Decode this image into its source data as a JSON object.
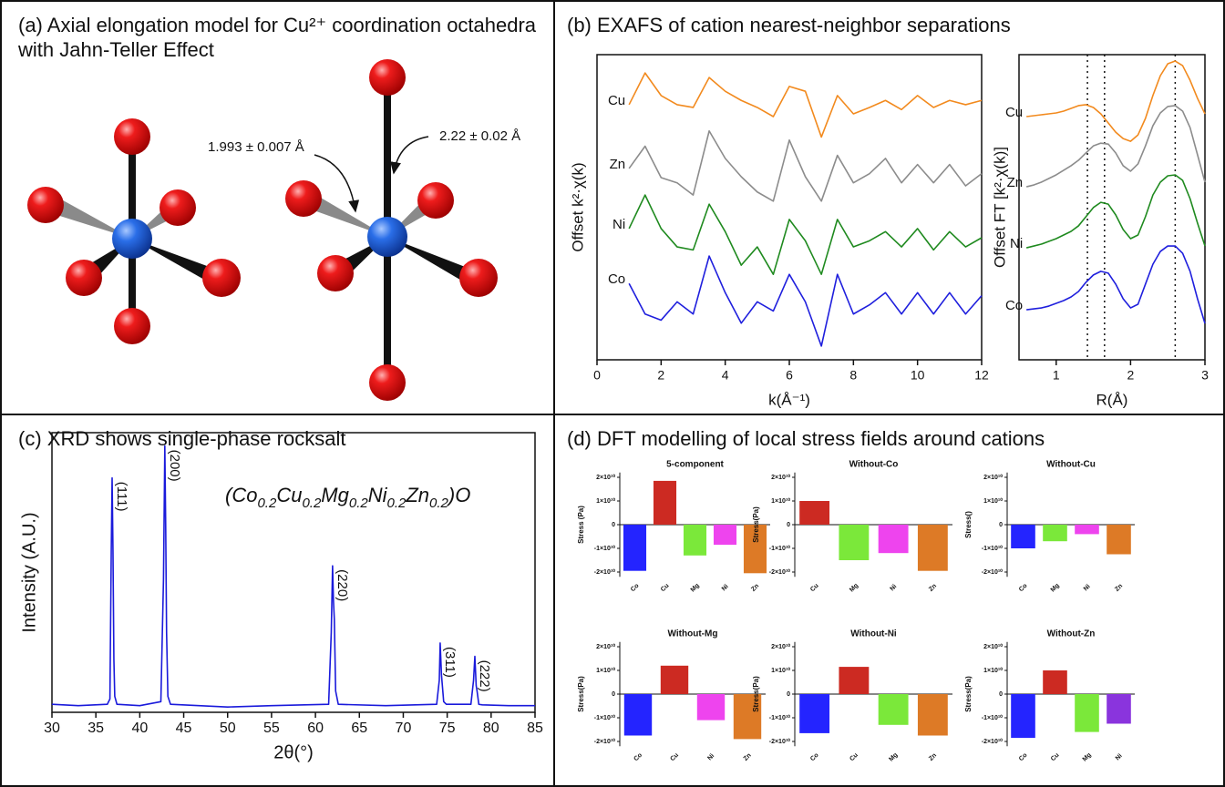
{
  "panels": [
    {
      "title": "(a) Axial elongation model for Cu²⁺ coordination octahedra with Jahn-Teller Effect"
    },
    {
      "title": "(b) EXAFS of cation nearest-neighbor separations"
    },
    {
      "title": "(c) XRD shows single-phase rocksalt"
    },
    {
      "title": "(d) DFT modelling of local stress fields around cations"
    }
  ],
  "diagram": {
    "bond_labels": [
      "1.993 ± 0.007 Å",
      "2.22 ± 0.02 Å"
    ]
  },
  "chart_data": [
    {
      "type": "line",
      "x_label": "k(Å⁻¹)",
      "y_label": "Offset k²·χ(k)",
      "x": [
        1,
        1.5,
        2,
        2.5,
        3,
        3.5,
        4,
        4.5,
        5,
        5.5,
        6,
        6.5,
        7,
        7.5,
        8,
        8.5,
        9,
        9.5,
        10,
        10.5,
        11,
        11.5,
        12
      ],
      "xlim": [
        0,
        12
      ],
      "xticks": [
        0,
        2,
        4,
        6,
        8,
        10,
        12
      ],
      "ylim": [
        0,
        10
      ],
      "series": [
        {
          "name": "Cu",
          "color": "#f28a1e",
          "values": [
            8.36,
            9.4,
            8.66,
            8.36,
            8.27,
            9.25,
            8.8,
            8.5,
            8.27,
            7.97,
            8.96,
            8.8,
            7.3,
            8.66,
            8.06,
            8.27,
            8.5,
            8.2,
            8.66,
            8.27,
            8.5,
            8.36,
            8.5
          ]
        },
        {
          "name": "Zn",
          "color": "#8c8c8c",
          "values": [
            6.27,
            7.0,
            5.97,
            5.8,
            5.4,
            7.5,
            6.6,
            6.0,
            5.5,
            5.2,
            7.2,
            6.0,
            5.2,
            6.7,
            5.8,
            6.1,
            6.6,
            5.8,
            6.4,
            5.8,
            6.4,
            5.7,
            6.1
          ]
        },
        {
          "name": "Ni",
          "color": "#1f8a1f",
          "values": [
            4.3,
            5.4,
            4.3,
            3.7,
            3.6,
            5.1,
            4.2,
            3.1,
            3.7,
            2.8,
            4.6,
            3.9,
            2.8,
            4.6,
            3.7,
            3.9,
            4.2,
            3.7,
            4.3,
            3.6,
            4.2,
            3.7,
            4.0
          ]
        },
        {
          "name": "Co",
          "color": "#1f1fdd",
          "values": [
            2.5,
            1.5,
            1.3,
            1.9,
            1.5,
            3.4,
            2.2,
            1.2,
            1.9,
            1.6,
            2.8,
            1.9,
            0.45,
            2.8,
            1.5,
            1.8,
            2.2,
            1.5,
            2.2,
            1.5,
            2.2,
            1.5,
            2.1
          ]
        }
      ]
    },
    {
      "type": "line",
      "x_label": "R(Å)",
      "y_label": "Offset FT [k²·χ(k)]",
      "x": [
        0.6,
        0.7,
        0.8,
        0.9,
        1.0,
        1.1,
        1.2,
        1.3,
        1.4,
        1.5,
        1.6,
        1.7,
        1.8,
        1.9,
        2.0,
        2.1,
        2.2,
        2.3,
        2.4,
        2.5,
        2.6,
        2.7,
        2.8,
        2.9,
        3.0
      ],
      "xlim": [
        0.5,
        3
      ],
      "xticks": [
        1,
        2,
        3
      ],
      "ylim": [
        0,
        10
      ],
      "vlines": [
        1.42,
        1.65,
        2.6
      ],
      "series": [
        {
          "name": "Cu",
          "color": "#f28a1e",
          "values": [
            7.97,
            8.0,
            8.03,
            8.06,
            8.09,
            8.15,
            8.24,
            8.33,
            8.36,
            8.27,
            8.06,
            7.76,
            7.46,
            7.25,
            7.16,
            7.37,
            7.91,
            8.66,
            9.31,
            9.7,
            9.79,
            9.64,
            9.16,
            8.57,
            8.06
          ]
        },
        {
          "name": "Zn",
          "color": "#8c8c8c",
          "values": [
            5.67,
            5.73,
            5.82,
            5.94,
            6.06,
            6.21,
            6.36,
            6.54,
            6.78,
            7.01,
            7.1,
            7.07,
            6.78,
            6.36,
            6.18,
            6.42,
            7.01,
            7.67,
            8.09,
            8.3,
            8.33,
            8.15,
            7.61,
            6.72,
            5.82
          ]
        },
        {
          "name": "Ni",
          "color": "#1f8a1f",
          "values": [
            3.67,
            3.73,
            3.79,
            3.88,
            3.97,
            4.09,
            4.21,
            4.39,
            4.69,
            4.99,
            5.16,
            5.1,
            4.75,
            4.27,
            3.97,
            4.09,
            4.69,
            5.4,
            5.82,
            6.03,
            6.06,
            5.88,
            5.28,
            4.48,
            3.73
          ]
        },
        {
          "name": "Co",
          "color": "#1f1fdd",
          "values": [
            1.64,
            1.67,
            1.7,
            1.76,
            1.85,
            1.94,
            2.06,
            2.24,
            2.54,
            2.78,
            2.9,
            2.84,
            2.48,
            2.0,
            1.7,
            1.82,
            2.48,
            3.13,
            3.55,
            3.73,
            3.73,
            3.49,
            2.9,
            2.0,
            1.19
          ]
        }
      ]
    },
    {
      "type": "line",
      "x_label": "2θ(°)",
      "y_label": "Intensity (A.U.)",
      "color": "#1a1adb",
      "x": [
        30,
        33,
        36.3,
        36.6,
        36.75,
        36.85,
        36.95,
        37.05,
        37.15,
        37.4,
        40,
        42.4,
        42.7,
        42.85,
        42.95,
        43.05,
        43.2,
        43.5,
        50,
        55,
        61.5,
        61.8,
        61.95,
        62.05,
        62.15,
        62.3,
        62.6,
        68,
        73.8,
        74.1,
        74.2,
        74.35,
        74.45,
        74.6,
        74.9,
        77.7,
        78.0,
        78.15,
        78.3,
        78.4,
        78.6,
        79,
        82,
        85
      ],
      "values": [
        0.03,
        0.025,
        0.03,
        0.05,
        0.6,
        0.88,
        0.6,
        0.2,
        0.06,
        0.03,
        0.025,
        0.04,
        0.5,
        1.0,
        0.7,
        0.3,
        0.06,
        0.03,
        0.02,
        0.025,
        0.03,
        0.3,
        0.55,
        0.42,
        0.35,
        0.08,
        0.03,
        0.025,
        0.03,
        0.12,
        0.26,
        0.14,
        0.1,
        0.04,
        0.03,
        0.03,
        0.12,
        0.21,
        0.1,
        0.08,
        0.03,
        0.028,
        0.025,
        0.025
      ],
      "xlim": [
        30,
        85
      ],
      "xticks": [
        30,
        35,
        40,
        45,
        50,
        55,
        60,
        65,
        70,
        75,
        80,
        85
      ],
      "ylim": [
        0,
        1.05
      ],
      "annotation": [
        "(Co",
        "0.2",
        "Cu",
        "0.2",
        "Mg",
        "0.2",
        "Ni",
        "0.2",
        "Zn",
        "0.2",
        ")O"
      ],
      "peaks": [
        {
          "label": "(111)",
          "x": 36.85
        },
        {
          "label": "(200)",
          "x": 42.85
        },
        {
          "label": "(220)",
          "x": 61.95
        },
        {
          "label": "(311)",
          "x": 74.2
        },
        {
          "label": "(222)",
          "x": 78.15
        }
      ]
    },
    {
      "type": "bar",
      "title": "5-component",
      "y_label": "Stress (Pa)",
      "categories": [
        "Co",
        "Cu",
        "Mg",
        "Ni",
        "Zn"
      ],
      "values": [
        -19500000000.0,
        18500000000.0,
        -13000000000.0,
        -8500000000.0,
        -20500000000.0
      ],
      "colors": [
        "#2424ff",
        "#cc2a22",
        "#7be83a",
        "#ee44ee",
        "#dd7a26"
      ],
      "ylim": [
        -22000000000.0,
        22000000000.0
      ],
      "yticks": [
        {
          "value": 20000000000.0,
          "label": "2×10¹⁰"
        },
        {
          "value": 10000000000.0,
          "label": "1×10¹⁰"
        },
        0,
        {
          "value": -10000000000.0,
          "label": "-1×10¹⁰"
        },
        {
          "value": -20000000000.0,
          "label": "-2×10¹⁰"
        }
      ]
    },
    {
      "type": "bar",
      "title": "Without-Co",
      "y_label": "Stress(Pa)",
      "categories": [
        "Cu",
        "Mg",
        "Ni",
        "Zn"
      ],
      "values": [
        10000000000.0,
        -15000000000.0,
        -12000000000.0,
        -19500000000.0
      ],
      "colors": [
        "#cc2a22",
        "#7be83a",
        "#ee44ee",
        "#dd7a26"
      ],
      "ylim": [
        -22000000000.0,
        22000000000.0
      ],
      "yticks": [
        {
          "value": 20000000000.0,
          "label": "2×10¹⁰"
        },
        {
          "value": 10000000000.0,
          "label": "1×10¹⁰"
        },
        0,
        {
          "value": -10000000000.0,
          "label": "-1×10¹⁰"
        },
        {
          "value": -20000000000.0,
          "label": "-2×10¹⁰"
        }
      ]
    },
    {
      "type": "bar",
      "title": "Without-Cu",
      "y_label": "Stress()",
      "categories": [
        "Co",
        "Mg",
        "Ni",
        "Zn"
      ],
      "values": [
        -10000000000.0,
        -7000000000.0,
        -4000000000.0,
        -12500000000.0
      ],
      "colors": [
        "#2424ff",
        "#7be83a",
        "#ee44ee",
        "#dd7a26"
      ],
      "ylim": [
        -22000000000.0,
        22000000000.0
      ],
      "yticks": [
        {
          "value": 20000000000.0,
          "label": "2×10¹⁰"
        },
        {
          "value": 10000000000.0,
          "label": "1×10¹⁰"
        },
        0,
        {
          "value": -10000000000.0,
          "label": "-1×10¹⁰"
        },
        {
          "value": -20000000000.0,
          "label": "-2×10¹⁰"
        }
      ]
    },
    {
      "type": "bar",
      "title": "Without-Mg",
      "y_label": "Stress(Pa)",
      "categories": [
        "Co",
        "Cu",
        "Ni",
        "Zn"
      ],
      "values": [
        -17500000000.0,
        12000000000.0,
        -11000000000.0,
        -19000000000.0
      ],
      "colors": [
        "#2424ff",
        "#cc2a22",
        "#ee44ee",
        "#dd7a26"
      ],
      "ylim": [
        -22000000000.0,
        22000000000.0
      ],
      "yticks": [
        {
          "value": 20000000000.0,
          "label": "2×10¹⁰"
        },
        {
          "value": 10000000000.0,
          "label": "1×10¹⁰"
        },
        0,
        {
          "value": -10000000000.0,
          "label": "-1×10¹⁰"
        },
        {
          "value": -20000000000.0,
          "label": "-2×10¹⁰"
        }
      ]
    },
    {
      "type": "bar",
      "title": "Without-Ni",
      "y_label": "Stress(Pa)",
      "categories": [
        "Co",
        "Cu",
        "Mg",
        "Zn"
      ],
      "values": [
        -16500000000.0,
        11500000000.0,
        -13000000000.0,
        -17500000000.0
      ],
      "colors": [
        "#2424ff",
        "#cc2a22",
        "#7be83a",
        "#dd7a26"
      ],
      "ylim": [
        -22000000000.0,
        22000000000.0
      ],
      "yticks": [
        {
          "value": 20000000000.0,
          "label": "2×10¹⁰"
        },
        {
          "value": 10000000000.0,
          "label": "1×10¹⁰"
        },
        0,
        {
          "value": -10000000000.0,
          "label": "-1×10¹⁰"
        },
        {
          "value": -20000000000.0,
          "label": "-2×10¹⁰"
        }
      ]
    },
    {
      "type": "bar",
      "title": "Without-Zn",
      "y_label": "Stress(Pa)",
      "categories": [
        "Co",
        "Cu",
        "Mg",
        "Ni"
      ],
      "values": [
        -18500000000.0,
        10000000000.0,
        -16000000000.0,
        -12500000000.0
      ],
      "colors": [
        "#2424ff",
        "#cc2a22",
        "#7be83a",
        "#8a34dd"
      ],
      "ylim": [
        -22000000000.0,
        22000000000.0
      ],
      "yticks": [
        {
          "value": 20000000000.0,
          "label": "2×10¹⁰"
        },
        {
          "value": 10000000000.0,
          "label": "1×10¹⁰"
        },
        0,
        {
          "value": -10000000000.0,
          "label": "-1×10¹⁰"
        },
        {
          "value": -20000000000.0,
          "label": "-2×10¹⁰"
        }
      ]
    }
  ]
}
